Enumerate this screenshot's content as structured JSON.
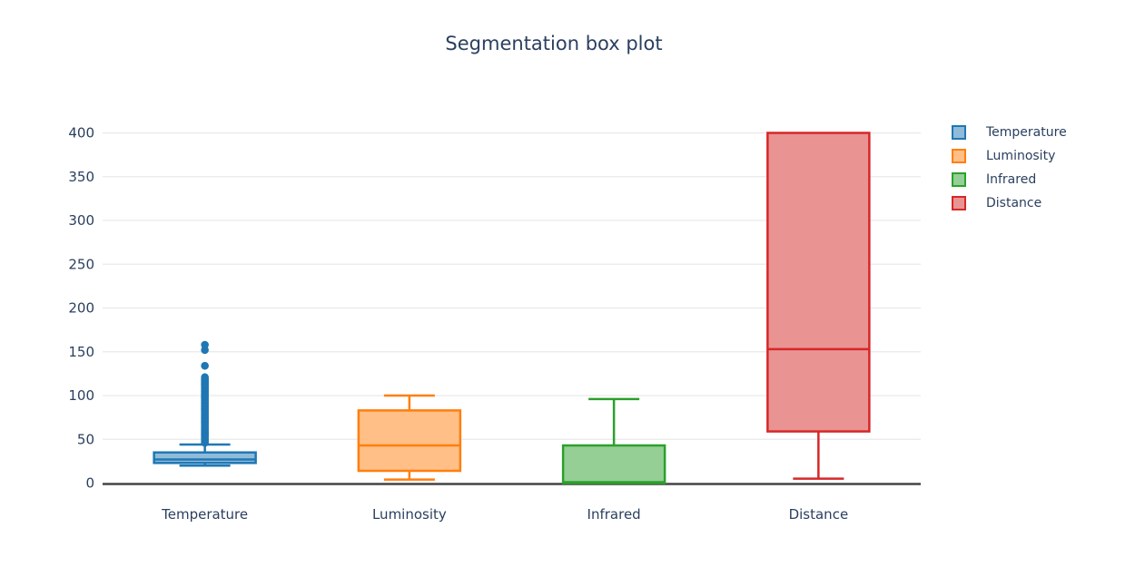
{
  "title": "Segmentation box plot",
  "colors": {
    "temperature_line": "#1f77b4",
    "temperature_fill": "#8fbbd9",
    "luminosity_line": "#ff7f0e",
    "luminosity_fill": "#ffbf86",
    "infrared_line": "#2ca02c",
    "infrared_fill": "#95cf95",
    "distance_line": "#d62728",
    "distance_fill": "#ea9393",
    "text": "#2a3f5f",
    "gridline": "#e9e9e9",
    "axis_line": "#444444",
    "background": "#ffffff"
  },
  "chart_data": {
    "type": "box",
    "title": "Segmentation box plot",
    "categories": [
      "Temperature",
      "Luminosity",
      "Infrared",
      "Distance"
    ],
    "xlabel": "",
    "ylabel": "",
    "ylim": [
      0,
      400
    ],
    "grid": true,
    "legend_position": "right",
    "yticks": [
      0,
      50,
      100,
      150,
      200,
      250,
      300,
      350,
      400
    ],
    "series": [
      {
        "name": "Temperature",
        "line_color": "#1f77b4",
        "fill_color": "#8fbbd9",
        "min": 20,
        "q1": 23,
        "median": 27,
        "q3": 35,
        "max": 44,
        "outliers": [
          46,
          47.5,
          49,
          50.5,
          52,
          53.5,
          55,
          56.5,
          58,
          59.5,
          61,
          62.5,
          64,
          65.5,
          67,
          68.5,
          70,
          71.5,
          73,
          74.5,
          76,
          77.5,
          79,
          80.5,
          82,
          83.5,
          85,
          86.5,
          88,
          89.5,
          91,
          92.5,
          94,
          95.5,
          97,
          98.5,
          100,
          101.5,
          103,
          104.5,
          106,
          107.5,
          109,
          110.5,
          112,
          113.5,
          115,
          116.5,
          118,
          119.5,
          121,
          134,
          152,
          158
        ]
      },
      {
        "name": "Luminosity",
        "line_color": "#ff7f0e",
        "fill_color": "#ffbf86",
        "min": 4,
        "q1": 14,
        "median": 43,
        "q3": 83,
        "max": 100,
        "outliers": []
      },
      {
        "name": "Infrared",
        "line_color": "#2ca02c",
        "fill_color": "#95cf95",
        "min": 0,
        "q1": 0,
        "median": 1,
        "q3": 43,
        "max": 96,
        "outliers": []
      },
      {
        "name": "Distance",
        "line_color": "#d62728",
        "fill_color": "#ea9393",
        "min": 5,
        "q1": 59,
        "median": 153,
        "q3": 400,
        "max": 400,
        "outliers": []
      }
    ]
  }
}
